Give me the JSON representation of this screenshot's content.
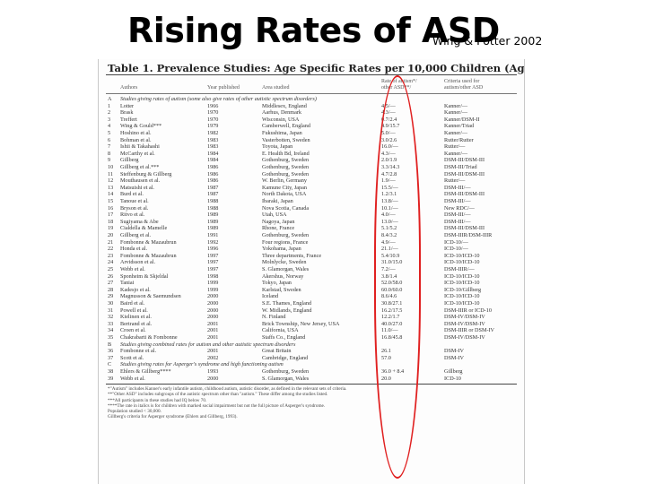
{
  "slide": {
    "title": "Rising Rates of ASD",
    "subtitle": "Wing & Potter 2002"
  },
  "table": {
    "title": "Table 1.   Prevalence Studies: Age Specific Rates per 10,000 Children (Age Ranges Vary)",
    "headers": {
      "authors": "Authors",
      "year": "Year published",
      "area": "Area studied",
      "rate": [
        "Rate of autism*/",
        "other ASD**/"
      ],
      "criteria": [
        "Criteria used for",
        "autism/other ASD"
      ]
    },
    "sections": [
      {
        "label": "A",
        "text": "Studies giving rates of autism (some also give rates of other autistic spectrum disorders)"
      },
      {
        "label": "B",
        "text": "Studies giving combined rates for autism and other autistic spectrum disorders"
      },
      {
        "label": "C",
        "text": "Studies giving rates for Asperger's syndrome and high functioning autism"
      }
    ],
    "rows_a": [
      [
        "1",
        "Lotter",
        "1966",
        "Middlesex, England",
        "4.5/—",
        "Kanner/—"
      ],
      [
        "2",
        "Brask",
        "1970",
        "Aarhus, Denmark",
        "4.3/—",
        "Kanner/—"
      ],
      [
        "3",
        "Treffert",
        "1970",
        "Wisconsin, USA",
        "0.7/2.4",
        "Kanner/DSM-II"
      ],
      [
        "4",
        "Wing & Gould***",
        "1979",
        "Camberwell, England",
        "4.9/15.7",
        "Kanner/Triad"
      ],
      [
        "5",
        "Hoshino et al.",
        "1982",
        "Fukushima, Japan",
        "5.0/—",
        "Kanner/—"
      ],
      [
        "6",
        "Bohman et al.",
        "1983",
        "Vasterbotten, Sweden",
        "3.0/2.6",
        "Rutter/Rutter"
      ],
      [
        "7",
        "Ishii & Takahashi",
        "1983",
        "Toyota, Japan",
        "16.0/—",
        "Rutter/—"
      ],
      [
        "8",
        "McCarthy et al.",
        "1984",
        "E. Health Bd, Ireland",
        "4.3/—",
        "Kanner/—"
      ],
      [
        "9",
        "Gillberg",
        "1984",
        "Gothenburg, Sweden",
        "2.0/1.9",
        "DSM-III/DSM-III"
      ],
      [
        "10",
        "Gillberg et al.***",
        "1986",
        "Gothenburg, Sweden",
        "3.3/14.3",
        "DSM-III/Triad"
      ],
      [
        "11",
        "Steffenburg & Gillberg",
        "1986",
        "Gothenburg, Sweden",
        "4.7/2.8",
        "DSM-III/DSM-III"
      ],
      [
        "12",
        "Mouthausen et al.",
        "1986",
        "W. Berlin, Germany",
        "1.9/—",
        "Rutter/—"
      ],
      [
        "13",
        "Matsuishi et al.",
        "1987",
        "Kamune City, Japan",
        "15.5/—",
        "DSM-III/—"
      ],
      [
        "14",
        "Burd et al.",
        "1987",
        "North Dakota, USA",
        "1.2/3.1",
        "DSM-III/DSM-III"
      ],
      [
        "15",
        "Tanoue et al.",
        "1988",
        "Ibaraki, Japan",
        "13.8/—",
        "DSM-III/—"
      ],
      [
        "16",
        "Bryson et al.",
        "1988",
        "Nova Scotia, Canada",
        "10.1/—",
        "New RDC/—"
      ],
      [
        "17",
        "Ritvo et al.",
        "1989",
        "Utah, USA",
        "4.0/—",
        "DSM-III/—"
      ],
      [
        "18",
        "Sugiyama & Abe",
        "1989",
        "Nagoya, Japan",
        "13.0/—",
        "DSM-III/—"
      ],
      [
        "19",
        "Cialdella & Mamelle",
        "1989",
        "Rhone, France",
        "5.1/5.2",
        "DSM-III/DSM-III"
      ],
      [
        "20",
        "Gillberg et al.",
        "1991",
        "Gothenburg, Sweden",
        "8.4/3.2",
        "DSM-IIIR/DSM-IIIR"
      ],
      [
        "21",
        "Fombonne & Mazaubrun",
        "1992",
        "Four regions, France",
        "4.9/—",
        "ICD-10/—"
      ],
      [
        "22",
        "Honda et al.",
        "1996",
        "Yokohama, Japan",
        "21.1/—",
        "ICD-10/—"
      ],
      [
        "23",
        "Fombonne & Mazaubrun",
        "1997",
        "Three departments, France",
        "5.4/10.9",
        "ICD-10/ICD-10"
      ],
      [
        "24",
        "Arvidsson et al.",
        "1997",
        "Molnlycke, Sweden",
        "31.0/15.0",
        "ICD-10/ICD-10"
      ],
      [
        "25",
        "Webb et al.",
        "1997",
        "S. Glamorgan, Wales",
        "7.2/—",
        "DSM-IIIR/—"
      ],
      [
        "26",
        "Sponheim & Skjeldal",
        "1998",
        "Akershus, Norway",
        "3.8/1.4",
        "ICD-10/ICD-10"
      ],
      [
        "27",
        "Taniai",
        "1999",
        "Tokyo, Japan",
        "52.0/58.0",
        "ICD-10/ICD-10"
      ],
      [
        "28",
        "Kadesjo et al.",
        "1999",
        "Karlstad, Sweden",
        "60.0/60.0",
        "ICD-10/Gillberg"
      ],
      [
        "29",
        "Magnusson & Saemundsen",
        "2000",
        "Iceland",
        "8.6/4.6",
        "ICD-10/ICD-10"
      ],
      [
        "30",
        "Baird et al.",
        "2000",
        "S.E. Thames, England",
        "30.8/27.1",
        "ICD-10/ICD-10"
      ],
      [
        "31",
        "Powell et al.",
        "2000",
        "W. Midlands, England",
        "16.2/17.5",
        "DSM-IIIR or ICD-10"
      ],
      [
        "32",
        "Kielinen et al.",
        "2000",
        "N. Finland",
        "12.2/1.7",
        "DSM-IV/DSM-IV"
      ],
      [
        "33",
        "Bertrand et al.",
        "2001",
        "Brick Township, New Jersey, USA",
        "40.0/27.0",
        "DSM-IV/DSM-IV"
      ],
      [
        "34",
        "Croen et al.",
        "2001",
        "California, USA",
        "11.0/—",
        "DSM-IIIR or DSM-IV"
      ],
      [
        "35",
        "Chakrabarti & Fombonne",
        "2001",
        "Staffs Co., England",
        "16.8/45.8",
        "DSM-IV/DSM-IV"
      ]
    ],
    "rows_b": [
      [
        "36",
        "Fombonne et al.",
        "2001",
        "Great Britain",
        "26.1",
        "DSM-IV"
      ],
      [
        "37",
        "Scott et al.",
        "2002",
        "Cambridge, England",
        "57.0",
        "DSM-IV"
      ]
    ],
    "rows_c": [
      [
        "38",
        "Ehlers & Gillberg****",
        "1993",
        "Gothenburg, Sweden",
        "36.0 + 8.4",
        "Gillberg"
      ],
      [
        "39",
        "Webb et al.",
        "2000",
        "S. Glamorgan, Wales",
        "20.0",
        "ICD-10"
      ]
    ],
    "notes": [
      "*\"Autism\" includes Kanner's early infantile autism, childhood autism, autistic disorder, as defined in the relevant sets of criteria.",
      "**\"Other ASD\" includes subgroups of the autistic spectrum other than \"autism.\" These differ among the studies listed.",
      "***All participants in these studies had IQ below 70.",
      "****The rate in italics is for children with marked social impairment but not the full picture of Asperger's syndrome.",
      "Population studied < 30,000.",
      "Gillberg's criteria for Asperger syndrome (Ehlers and Gillberg, 1993)."
    ]
  },
  "colors": {
    "highlight": "#e02020",
    "text": "#000000"
  }
}
